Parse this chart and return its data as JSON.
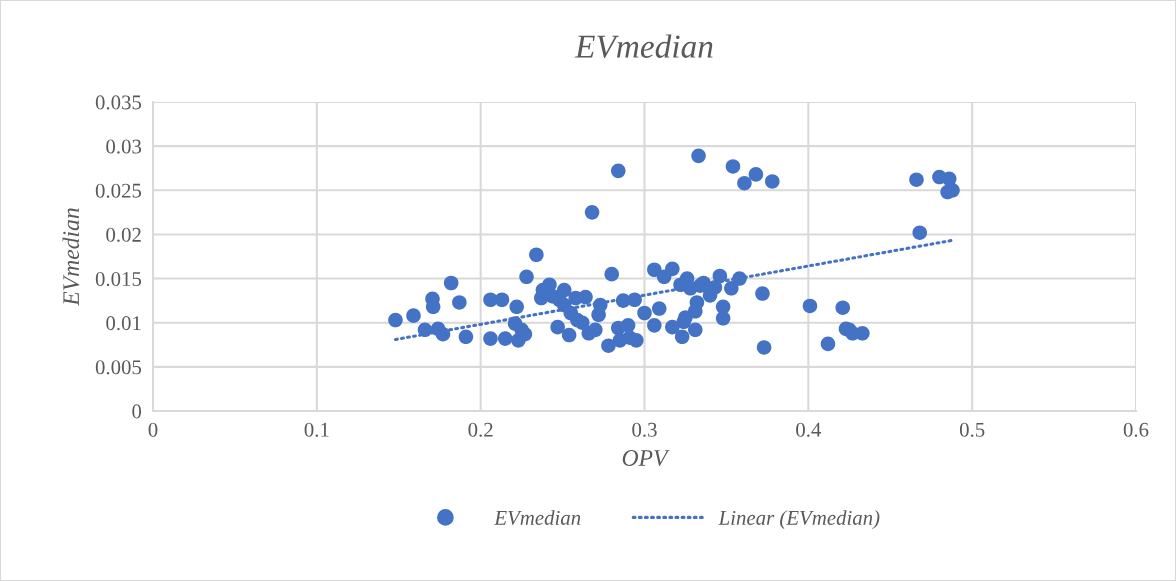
{
  "chart_data": {
    "type": "scatter",
    "title": "EVmedian",
    "xlabel": "OPV",
    "ylabel": "EVmedian",
    "xlim": [
      0,
      0.6
    ],
    "xticks": [
      0,
      0.1,
      0.2,
      0.3,
      0.4,
      0.5,
      0.6
    ],
    "ylim": [
      0,
      0.035
    ],
    "yticks": [
      0,
      0.005,
      0.01,
      0.015,
      0.02,
      0.025,
      0.03,
      0.035
    ],
    "grid": true,
    "legend": "bottom",
    "series": [
      {
        "name": "EVmedian",
        "color": "#4472c4",
        "marker": "circle",
        "x": [
          0.148,
          0.159,
          0.166,
          0.1706,
          0.171,
          0.174,
          0.177,
          0.182,
          0.187,
          0.191,
          0.206,
          0.206,
          0.213,
          0.215,
          0.222,
          0.221,
          0.223,
          0.225,
          0.227,
          0.228,
          0.234,
          0.237,
          0.238,
          0.242,
          0.244,
          0.247,
          0.248,
          0.251,
          0.251,
          0.255,
          0.254,
          0.258,
          0.259,
          0.262,
          0.264,
          0.266,
          0.268,
          0.27,
          0.272,
          0.273,
          0.278,
          0.28,
          0.284,
          0.284,
          0.285,
          0.287,
          0.29,
          0.291,
          0.294,
          0.295,
          0.3,
          0.306,
          0.306,
          0.309,
          0.312,
          0.317,
          0.317,
          0.322,
          0.323,
          0.324,
          0.325,
          0.326,
          0.328,
          0.331,
          0.331,
          0.332,
          0.333,
          0.334,
          0.336,
          0.34,
          0.343,
          0.346,
          0.348,
          0.348,
          0.353,
          0.354,
          0.358,
          0.361,
          0.368,
          0.372,
          0.373,
          0.378,
          0.401,
          0.412,
          0.421,
          0.423,
          0.425,
          0.427,
          0.433,
          0.466,
          0.468,
          0.48,
          0.486,
          0.485,
          0.488
        ],
        "values": [
          0.0103,
          0.0108,
          0.0092,
          0.0127,
          0.0118,
          0.0093,
          0.0087,
          0.0145,
          0.0123,
          0.0084,
          0.0126,
          0.0082,
          0.0126,
          0.0082,
          0.0118,
          0.0099,
          0.008,
          0.0092,
          0.0087,
          0.0152,
          0.0177,
          0.0128,
          0.0137,
          0.0143,
          0.013,
          0.0095,
          0.0126,
          0.0137,
          0.012,
          0.0111,
          0.0086,
          0.0128,
          0.0103,
          0.01,
          0.0129,
          0.0088,
          0.0225,
          0.0092,
          0.0109,
          0.012,
          0.0074,
          0.0155,
          0.0272,
          0.0094,
          0.008,
          0.0125,
          0.0097,
          0.0083,
          0.0126,
          0.008,
          0.0111,
          0.016,
          0.0097,
          0.0116,
          0.0152,
          0.0161,
          0.0095,
          0.0143,
          0.0084,
          0.0101,
          0.0106,
          0.015,
          0.0139,
          0.0113,
          0.0092,
          0.0123,
          0.0289,
          0.0142,
          0.0145,
          0.0131,
          0.014,
          0.0153,
          0.0118,
          0.0105,
          0.0139,
          0.0277,
          0.015,
          0.0258,
          0.0268,
          0.0133,
          0.0072,
          0.026,
          0.0119,
          0.0076,
          0.0117,
          0.0093,
          0.0092,
          0.0088,
          0.0088,
          0.0262,
          0.0202,
          0.0265,
          0.0263,
          0.0248,
          0.025
        ]
      },
      {
        "name": "Linear (EVmedian)",
        "type": "line",
        "color": "#4472c4",
        "line_style": "dotted",
        "marker": "none",
        "x": [
          0.148,
          0.487
        ],
        "values": [
          0.0081,
          0.0193
        ]
      }
    ]
  }
}
